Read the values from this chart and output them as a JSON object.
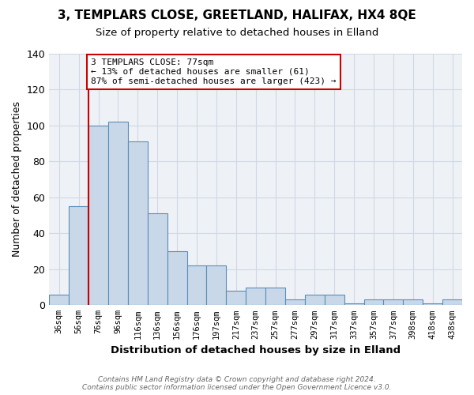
{
  "title1": "3, TEMPLARS CLOSE, GREETLAND, HALIFAX, HX4 8QE",
  "title2": "Size of property relative to detached houses in Elland",
  "xlabel": "Distribution of detached houses by size in Elland",
  "ylabel": "Number of detached properties",
  "bar_labels": [
    "36sqm",
    "56sqm",
    "76sqm",
    "96sqm",
    "116sqm",
    "136sqm",
    "156sqm",
    "176sqm",
    "197sqm",
    "217sqm",
    "237sqm",
    "257sqm",
    "277sqm",
    "297sqm",
    "317sqm",
    "337sqm",
    "357sqm",
    "377sqm",
    "398sqm",
    "418sqm",
    "438sqm"
  ],
  "bar_values": [
    6,
    55,
    100,
    102,
    91,
    51,
    30,
    22,
    22,
    8,
    10,
    10,
    3,
    6,
    6,
    1,
    3,
    3,
    3,
    1,
    3
  ],
  "bar_color": "#c8d8e8",
  "bar_edge_color": "#5b8db8",
  "vline_color": "#cc0000",
  "annotation_text": "3 TEMPLARS CLOSE: 77sqm\n← 13% of detached houses are smaller (61)\n87% of semi-detached houses are larger (423) →",
  "annotation_box_color": "#ffffff",
  "annotation_box_edge": "#cc0000",
  "ylim": [
    0,
    140
  ],
  "yticks": [
    0,
    20,
    40,
    60,
    80,
    100,
    120,
    140
  ],
  "footer1": "Contains HM Land Registry data © Crown copyright and database right 2024.",
  "footer2": "Contains public sector information licensed under the Open Government Licence v3.0.",
  "bg_color": "#eef2f7",
  "grid_color": "#d0d8e4"
}
